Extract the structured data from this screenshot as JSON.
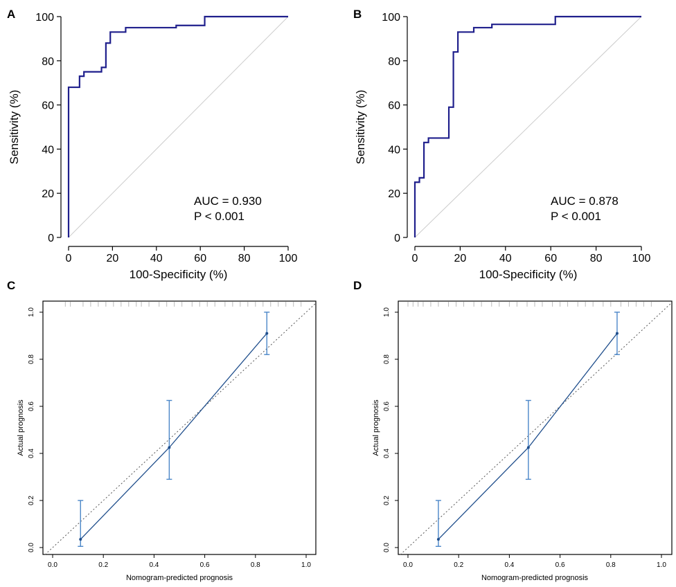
{
  "chart_data": [
    {
      "panel": "A",
      "type": "line",
      "subtype": "roc",
      "xlabel": "100-Specificity (%)",
      "ylabel": "Sensitivity (%)",
      "xlim": [
        0,
        100
      ],
      "ylim": [
        0,
        100
      ],
      "xticks": [
        "0",
        "20",
        "40",
        "60",
        "80",
        "100"
      ],
      "yticks": [
        "0",
        "20",
        "40",
        "60",
        "80",
        "100"
      ],
      "series": [
        {
          "name": "ROC",
          "color": "#1f1f8c",
          "x": [
            0,
            0,
            1,
            1,
            5,
            5,
            7,
            7,
            15,
            15,
            17,
            17,
            19,
            19,
            26,
            26,
            49,
            49,
            62,
            62,
            100
          ],
          "y": [
            0,
            68,
            68,
            68,
            68,
            73,
            73,
            75,
            75,
            77,
            77,
            88,
            88,
            93,
            93,
            95,
            95,
            96,
            96,
            100,
            100
          ]
        },
        {
          "name": "reference",
          "color": "#cccccc",
          "x": [
            0,
            100
          ],
          "y": [
            0,
            100
          ]
        }
      ],
      "annotations": [
        "AUC = 0.930",
        "P < 0.001"
      ]
    },
    {
      "panel": "B",
      "type": "line",
      "subtype": "roc",
      "xlabel": "100-Specificity (%)",
      "ylabel": "Sensitivity (%)",
      "xlim": [
        0,
        100
      ],
      "ylim": [
        0,
        100
      ],
      "xticks": [
        "0",
        "20",
        "40",
        "60",
        "80",
        "100"
      ],
      "yticks": [
        "0",
        "20",
        "40",
        "60",
        "80",
        "100"
      ],
      "series": [
        {
          "name": "ROC",
          "color": "#1f1f8c",
          "x": [
            0,
            0,
            2,
            2,
            4,
            4,
            6,
            6,
            15,
            15,
            17,
            17,
            19,
            19,
            26,
            26,
            34,
            34,
            62,
            62,
            100
          ],
          "y": [
            0,
            25,
            25,
            27,
            27,
            43,
            43,
            45,
            45,
            59,
            59,
            84,
            84,
            93,
            93,
            95,
            95,
            96.5,
            96.5,
            100,
            100
          ]
        },
        {
          "name": "reference",
          "color": "#cccccc",
          "x": [
            0,
            100
          ],
          "y": [
            0,
            100
          ]
        }
      ],
      "annotations": [
        "AUC = 0.878",
        "P < 0.001"
      ]
    },
    {
      "panel": "C",
      "type": "line",
      "subtype": "calibration",
      "xlabel": "Nomogram-predicted prognosis",
      "ylabel": "Actual prognosis",
      "xlim": [
        -0.03,
        1.05
      ],
      "ylim": [
        -0.03,
        1.04
      ],
      "xticks": [
        "0.0",
        "0.2",
        "0.4",
        "0.6",
        "0.8",
        "1.0"
      ],
      "yticks": [
        "0.0",
        "0.2",
        "0.4",
        "0.6",
        "0.8",
        "1.0"
      ],
      "points": [
        {
          "x": 0.11,
          "y": 0.035,
          "lower": 0.005,
          "upper": 0.2
        },
        {
          "x": 0.46,
          "y": 0.425,
          "lower": 0.29,
          "upper": 0.625
        },
        {
          "x": 0.845,
          "y": 0.91,
          "lower": 0.82,
          "upper": 1.0
        }
      ],
      "line_color": "#1f4e8c",
      "errorbar_color": "#4a86c8",
      "reference": {
        "x": [
          0,
          1
        ],
        "y": [
          0,
          1
        ]
      },
      "rug": [
        0.05,
        0.07,
        0.12,
        0.15,
        0.18,
        0.21,
        0.24,
        0.27,
        0.3,
        0.33,
        0.35,
        0.38,
        0.42,
        0.45,
        0.48,
        0.51,
        0.55,
        0.58,
        0.61,
        0.64,
        0.68,
        0.71,
        0.74,
        0.77,
        0.8,
        0.83,
        0.86,
        0.89,
        0.92,
        0.95,
        0.98
      ]
    },
    {
      "panel": "D",
      "type": "line",
      "subtype": "calibration",
      "xlabel": "Nomogram-predicted prognosis",
      "ylabel": "Actual prognosis",
      "xlim": [
        -0.03,
        1.05
      ],
      "ylim": [
        -0.03,
        1.04
      ],
      "xticks": [
        "0.0",
        "0.2",
        "0.4",
        "0.6",
        "0.8",
        "1.0"
      ],
      "yticks": [
        "0.0",
        "0.2",
        "0.4",
        "0.6",
        "0.8",
        "1.0"
      ],
      "points": [
        {
          "x": 0.12,
          "y": 0.035,
          "lower": 0.005,
          "upper": 0.2
        },
        {
          "x": 0.475,
          "y": 0.425,
          "lower": 0.29,
          "upper": 0.625
        },
        {
          "x": 0.825,
          "y": 0.91,
          "lower": 0.82,
          "upper": 1.0
        }
      ],
      "line_color": "#1f4e8c",
      "errorbar_color": "#4a86c8",
      "reference": {
        "x": [
          0,
          1
        ],
        "y": [
          0,
          1
        ]
      },
      "rug": [
        0.0,
        0.02,
        0.04,
        0.06,
        0.09,
        0.12,
        0.16,
        0.19,
        0.22,
        0.26,
        0.29,
        0.33,
        0.36,
        0.4,
        0.43,
        0.47,
        0.5,
        0.53,
        0.57,
        0.6,
        0.63,
        0.67,
        0.7,
        0.73,
        0.77,
        0.8,
        0.84,
        0.87,
        0.9,
        0.93,
        0.96
      ]
    }
  ]
}
